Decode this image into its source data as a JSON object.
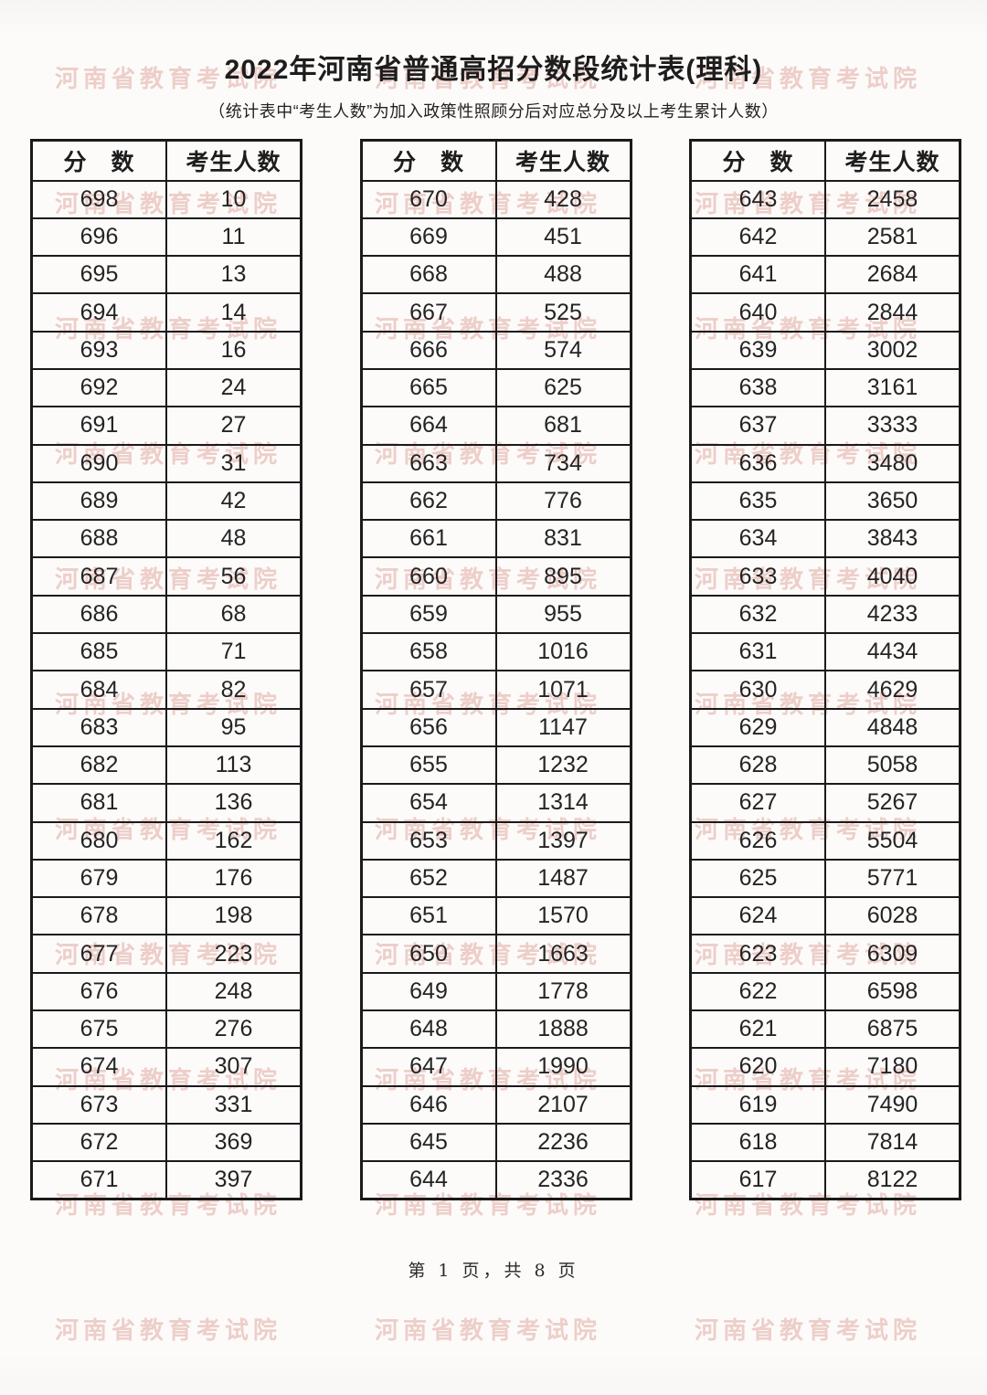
{
  "page": {
    "title": "2022年河南省普通高招分数段统计表(理科)",
    "subtitle": "（统计表中“考生人数”为加入政策性照顾分后对应总分及以上考生累计人数）",
    "footer": "第 1 页，共 8 页",
    "watermark": {
      "text": "河南省教育考试院",
      "color": "#d5887b"
    }
  },
  "tables": [
    {
      "headers": {
        "score": "分　数",
        "count": "考生人数"
      },
      "rows": [
        [
          "698",
          "10"
        ],
        [
          "696",
          "11"
        ],
        [
          "695",
          "13"
        ],
        [
          "694",
          "14"
        ],
        [
          "693",
          "16"
        ],
        [
          "692",
          "24"
        ],
        [
          "691",
          "27"
        ],
        [
          "690",
          "31"
        ],
        [
          "689",
          "42"
        ],
        [
          "688",
          "48"
        ],
        [
          "687",
          "56"
        ],
        [
          "686",
          "68"
        ],
        [
          "685",
          "71"
        ],
        [
          "684",
          "82"
        ],
        [
          "683",
          "95"
        ],
        [
          "682",
          "113"
        ],
        [
          "681",
          "136"
        ],
        [
          "680",
          "162"
        ],
        [
          "679",
          "176"
        ],
        [
          "678",
          "198"
        ],
        [
          "677",
          "223"
        ],
        [
          "676",
          "248"
        ],
        [
          "675",
          "276"
        ],
        [
          "674",
          "307"
        ],
        [
          "673",
          "331"
        ],
        [
          "672",
          "369"
        ],
        [
          "671",
          "397"
        ]
      ]
    },
    {
      "headers": {
        "score": "分　数",
        "count": "考生人数"
      },
      "rows": [
        [
          "670",
          "428"
        ],
        [
          "669",
          "451"
        ],
        [
          "668",
          "488"
        ],
        [
          "667",
          "525"
        ],
        [
          "666",
          "574"
        ],
        [
          "665",
          "625"
        ],
        [
          "664",
          "681"
        ],
        [
          "663",
          "734"
        ],
        [
          "662",
          "776"
        ],
        [
          "661",
          "831"
        ],
        [
          "660",
          "895"
        ],
        [
          "659",
          "955"
        ],
        [
          "658",
          "1016"
        ],
        [
          "657",
          "1071"
        ],
        [
          "656",
          "1147"
        ],
        [
          "655",
          "1232"
        ],
        [
          "654",
          "1314"
        ],
        [
          "653",
          "1397"
        ],
        [
          "652",
          "1487"
        ],
        [
          "651",
          "1570"
        ],
        [
          "650",
          "1663"
        ],
        [
          "649",
          "1778"
        ],
        [
          "648",
          "1888"
        ],
        [
          "647",
          "1990"
        ],
        [
          "646",
          "2107"
        ],
        [
          "645",
          "2236"
        ],
        [
          "644",
          "2336"
        ]
      ]
    },
    {
      "headers": {
        "score": "分　数",
        "count": "考生人数"
      },
      "rows": [
        [
          "643",
          "2458"
        ],
        [
          "642",
          "2581"
        ],
        [
          "641",
          "2684"
        ],
        [
          "640",
          "2844"
        ],
        [
          "639",
          "3002"
        ],
        [
          "638",
          "3161"
        ],
        [
          "637",
          "3333"
        ],
        [
          "636",
          "3480"
        ],
        [
          "635",
          "3650"
        ],
        [
          "634",
          "3843"
        ],
        [
          "633",
          "4040"
        ],
        [
          "632",
          "4233"
        ],
        [
          "631",
          "4434"
        ],
        [
          "630",
          "4629"
        ],
        [
          "629",
          "4848"
        ],
        [
          "628",
          "5058"
        ],
        [
          "627",
          "5267"
        ],
        [
          "626",
          "5504"
        ],
        [
          "625",
          "5771"
        ],
        [
          "624",
          "6028"
        ],
        [
          "623",
          "6309"
        ],
        [
          "622",
          "6598"
        ],
        [
          "621",
          "6875"
        ],
        [
          "620",
          "7180"
        ],
        [
          "619",
          "7490"
        ],
        [
          "618",
          "7814"
        ],
        [
          "617",
          "8122"
        ]
      ]
    }
  ]
}
